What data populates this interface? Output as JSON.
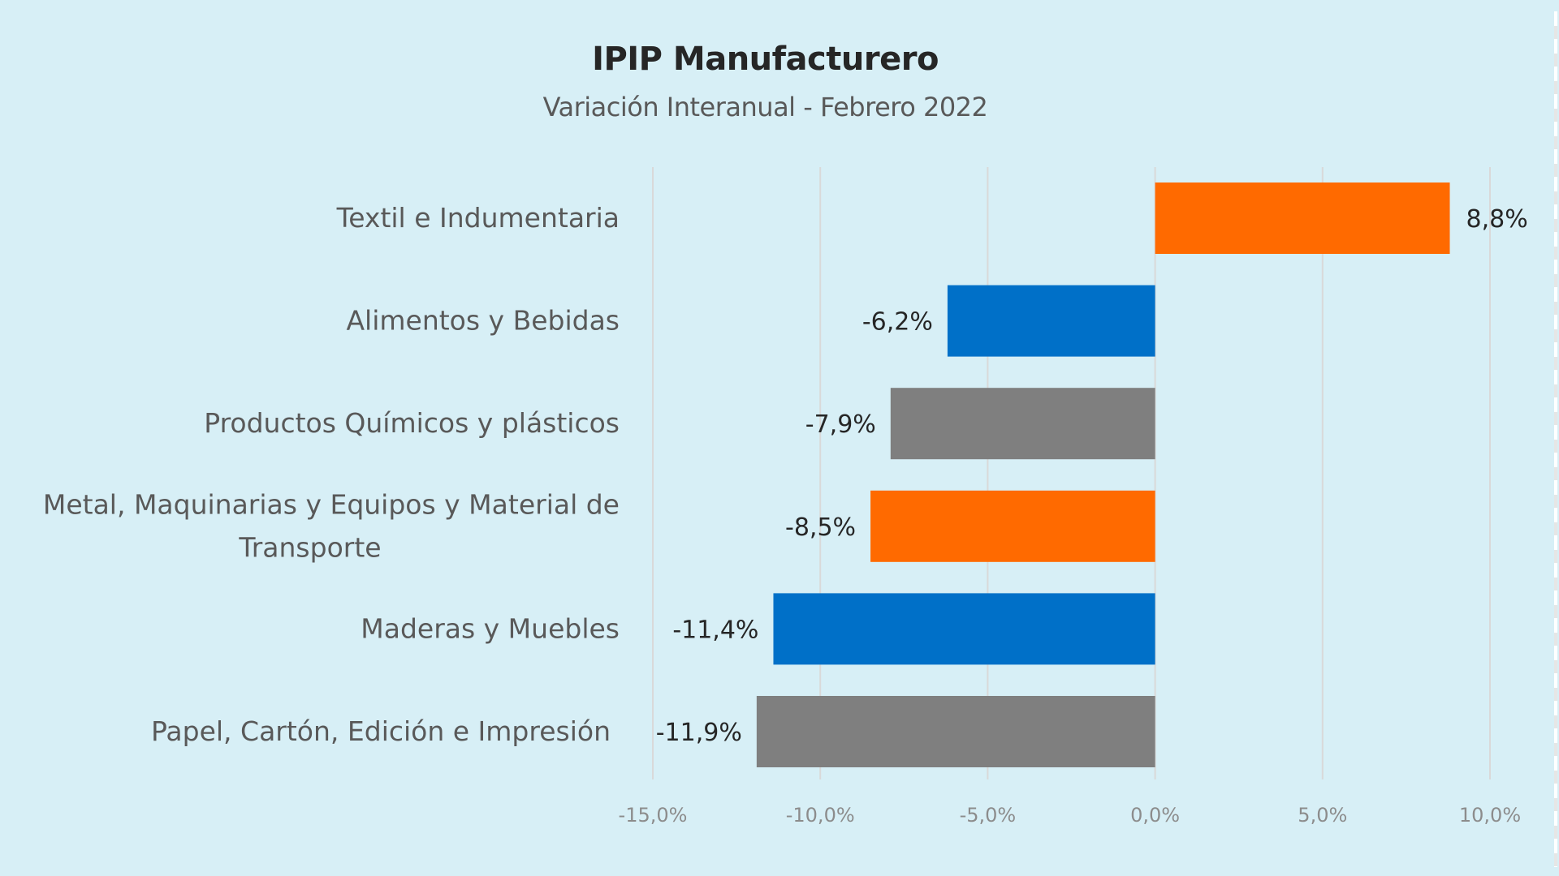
{
  "chart_data": {
    "type": "bar",
    "orientation": "horizontal",
    "title": "IPIP Manufacturero",
    "subtitle": "Variación Interanual - Febrero 2022",
    "categories": [
      "Textil e Indumentaria",
      "Alimentos y Bebidas",
      "Productos Químicos y plásticos",
      "Metal, Maquinarias y Equipos y Material de Transporte",
      "Maderas y Muebles",
      "Papel, Cartón, Edición e Impresión"
    ],
    "category_lines": [
      [
        "Textil e Indumentaria"
      ],
      [
        "Alimentos y Bebidas"
      ],
      [
        "Productos Químicos y plásticos"
      ],
      [
        "Metal, Maquinarias y Equipos y Material de",
        "Transporte"
      ],
      [
        "Maderas y Muebles"
      ],
      [
        "Papel, Cartón, Edición e Impresión"
      ]
    ],
    "values": [
      8.8,
      -6.2,
      -7.9,
      -8.5,
      -11.4,
      -11.9
    ],
    "data_labels": [
      "8,8%",
      "-6,2%",
      "-7,9%",
      "-8,5%",
      "-11,4%",
      "-11,9%"
    ],
    "colors": [
      "#ff6a00",
      "#0070c8",
      "#7f7f7f",
      "#ff6a00",
      "#0070c8",
      "#7f7f7f"
    ],
    "xlim": [
      -15,
      10
    ],
    "xticks": [
      -15,
      -10,
      -5,
      0,
      5,
      10
    ],
    "xtick_labels": [
      "-15,0%",
      "-10,0%",
      "-5,0%",
      "0,0%",
      "5,0%",
      "10,0%"
    ],
    "xlabel": "",
    "ylabel": "",
    "grid": "vertical",
    "legend": "none"
  }
}
